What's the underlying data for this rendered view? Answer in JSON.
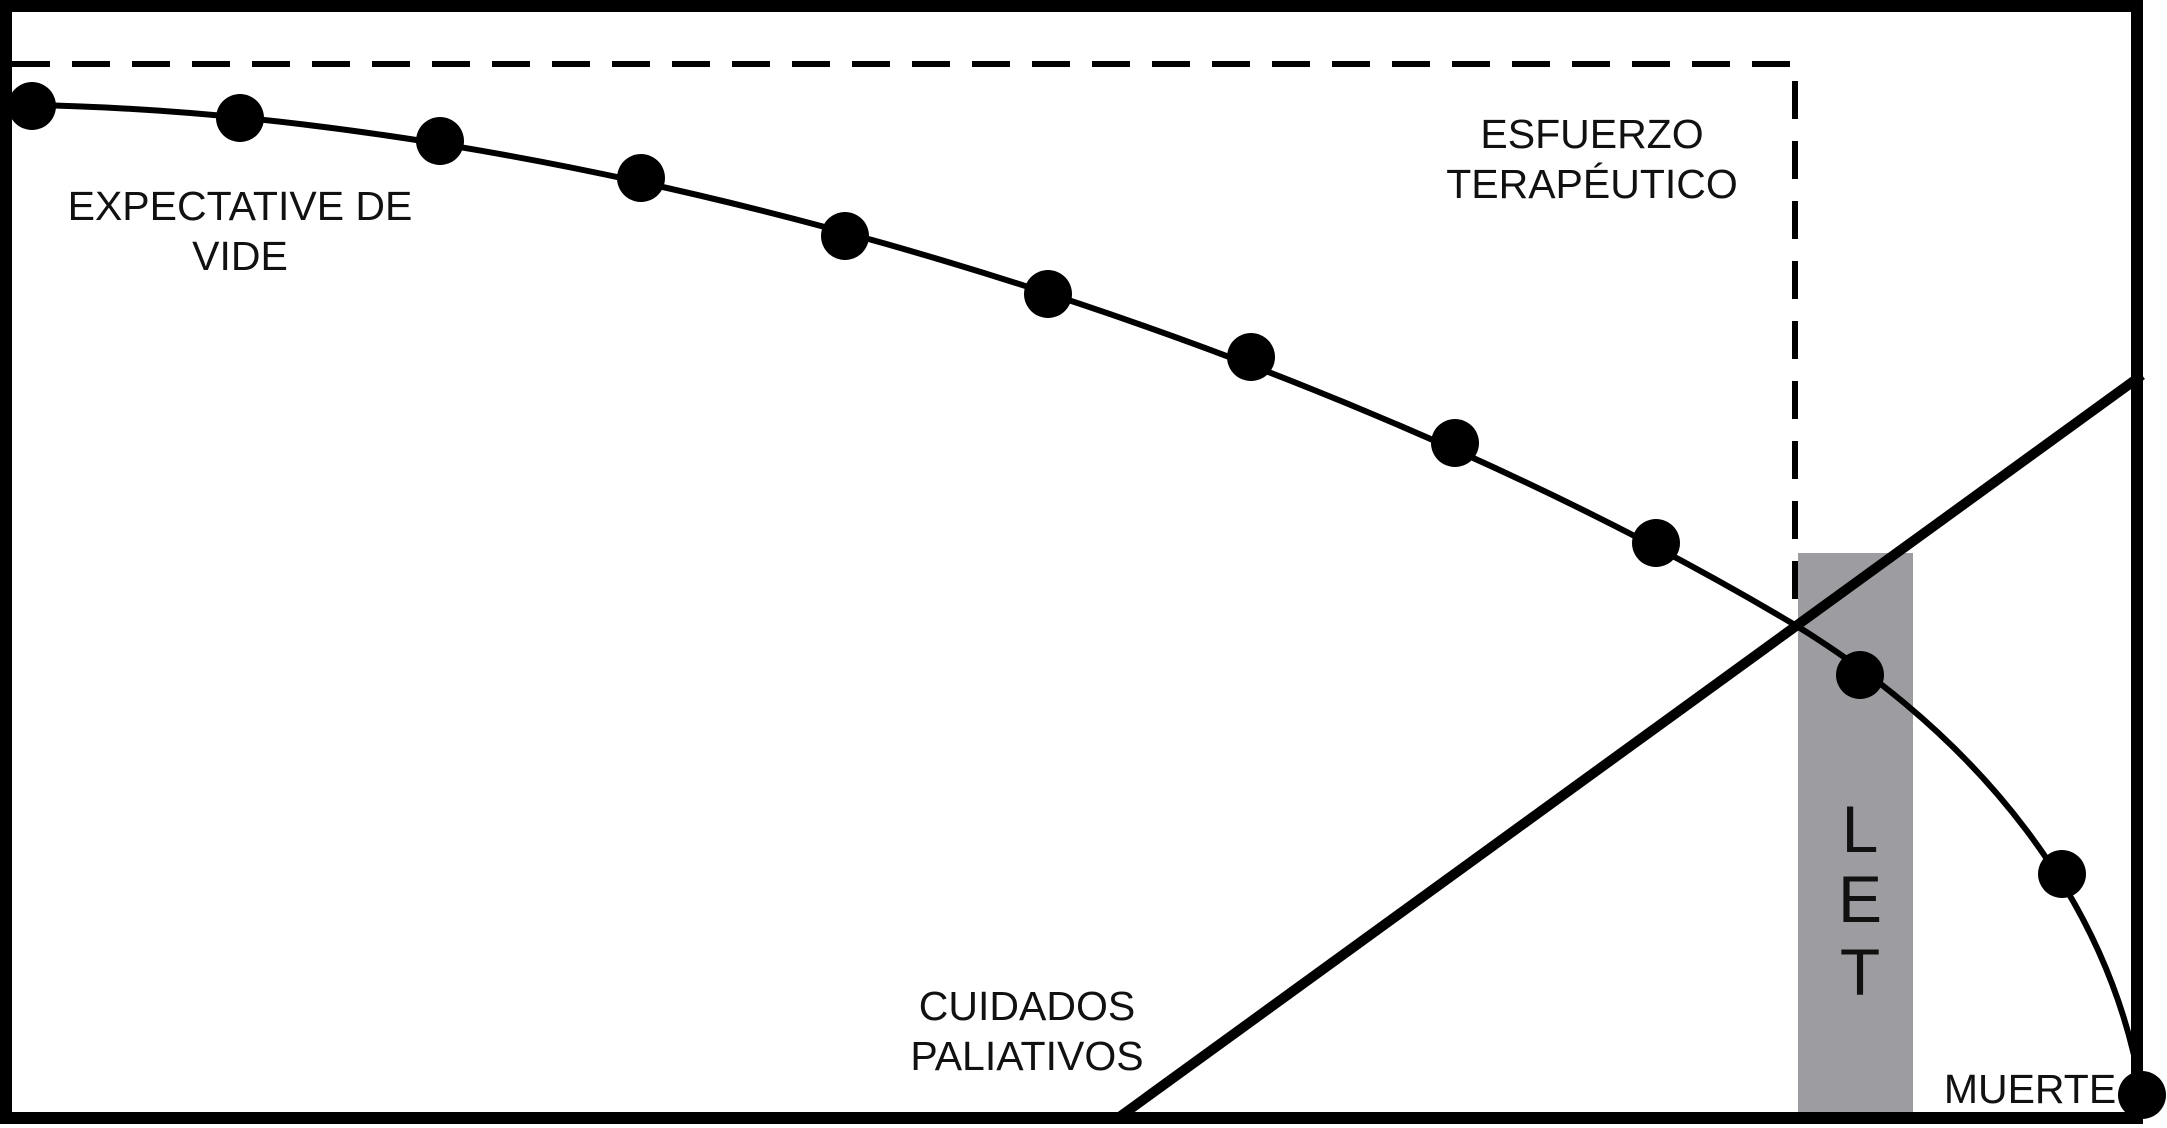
{
  "labels": {
    "life_expectancy": [
      "EXPECTATIVE DE",
      "VIDE"
    ],
    "therapeutic_effort": [
      "ESFUERZO",
      "TERAPÉUTICO"
    ],
    "palliative_care": [
      "CUIDADOS",
      "PALIATIVOS"
    ],
    "death": "MUERTE",
    "let": [
      "L",
      "E",
      "T"
    ]
  },
  "colors": {
    "line": "#000000",
    "let_band": "#9d9ca1",
    "background": "#ffffff"
  }
}
